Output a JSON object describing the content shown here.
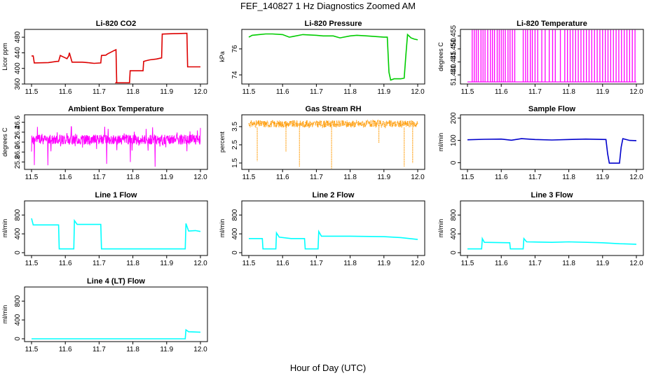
{
  "figure": {
    "title": "FEF_140827  1 Hz Diagnostics Zoomed AM",
    "xlabel": "Hour of Day (UTC)"
  },
  "chart_data": [
    {
      "type": "line",
      "title": "Li-820 CO2",
      "ylabel": "Licor ppm",
      "color": "#dd0000",
      "xlim": [
        11.5,
        12.0
      ],
      "ylim": [
        360,
        500
      ],
      "xticks": [
        "11.5",
        "11.6",
        "11.7",
        "11.8",
        "11.9",
        "12.0"
      ],
      "yticks": [
        "360",
        "400",
        "440",
        "480"
      ],
      "series": [
        {
          "points": [
            [
              11.5,
              432
            ],
            [
              11.505,
              432
            ],
            [
              11.508,
              414
            ],
            [
              11.55,
              415
            ],
            [
              11.575,
              418
            ],
            [
              11.58,
              418
            ],
            [
              11.585,
              433
            ],
            [
              11.6,
              427
            ],
            [
              11.605,
              425
            ],
            [
              11.61,
              432
            ],
            [
              11.612,
              440
            ],
            [
              11.62,
              416
            ],
            [
              11.65,
              416
            ],
            [
              11.665,
              415
            ],
            [
              11.675,
              414
            ],
            [
              11.685,
              413
            ],
            [
              11.705,
              414
            ],
            [
              11.707,
              433
            ],
            [
              11.72,
              434
            ],
            [
              11.725,
              437
            ],
            [
              11.745,
              446
            ],
            [
              11.75,
              448
            ],
            [
              11.752,
              365
            ],
            [
              11.75,
              363
            ],
            [
              11.79,
              363
            ],
            [
              11.792,
              394
            ],
            [
              11.83,
              394
            ],
            [
              11.832,
              418
            ],
            [
              11.84,
              420
            ],
            [
              11.85,
              422
            ],
            [
              11.87,
              424
            ],
            [
              11.885,
              427
            ],
            [
              11.887,
              488
            ],
            [
              11.92,
              489
            ],
            [
              11.96,
              490
            ],
            [
              11.962,
              404
            ],
            [
              12.0,
              404
            ]
          ]
        }
      ]
    },
    {
      "type": "line",
      "title": "Li-820 Pressure",
      "ylabel": "kPa",
      "color": "#00cc00",
      "xlim": [
        11.5,
        12.0
      ],
      "ylim": [
        73.3,
        77.5
      ],
      "xticks": [
        "11.5",
        "11.6",
        "11.7",
        "11.8",
        "11.9",
        "12.0"
      ],
      "yticks": [
        "74",
        "76"
      ],
      "series": [
        {
          "points": [
            [
              11.5,
              76.9
            ],
            [
              11.51,
              77.05
            ],
            [
              11.53,
              77.1
            ],
            [
              11.55,
              77.15
            ],
            [
              11.57,
              77.15
            ],
            [
              11.6,
              77.1
            ],
            [
              11.62,
              76.9
            ],
            [
              11.63,
              76.95
            ],
            [
              11.66,
              77.1
            ],
            [
              11.7,
              77.05
            ],
            [
              11.72,
              77.0
            ],
            [
              11.75,
              77.0
            ],
            [
              11.77,
              76.85
            ],
            [
              11.8,
              77.0
            ],
            [
              11.82,
              77.05
            ],
            [
              11.85,
              77.0
            ],
            [
              11.9,
              76.9
            ],
            [
              11.91,
              76.9
            ],
            [
              11.915,
              74.2
            ],
            [
              11.92,
              73.6
            ],
            [
              11.93,
              73.7
            ],
            [
              11.95,
              73.7
            ],
            [
              11.96,
              73.75
            ],
            [
              11.965,
              75.5
            ],
            [
              11.97,
              77.1
            ],
            [
              11.98,
              76.85
            ],
            [
              11.99,
              76.75
            ],
            [
              12.0,
              76.7
            ]
          ]
        }
      ]
    },
    {
      "type": "line",
      "title": "Li-820 Temperature",
      "ylabel": "degrees C",
      "color": "#ff00ff",
      "xlim": [
        11.5,
        12.0
      ],
      "ylim": [
        51.4365,
        51.4575
      ],
      "xticks": [
        "11.5",
        "11.6",
        "11.7",
        "11.8",
        "11.9",
        "12.0"
      ],
      "yticks": [
        "51.440",
        "51.445",
        "51.450",
        "51.455"
      ],
      "baseline": 51.4373,
      "peak": 51.4573,
      "spike_hours": [
        11.514,
        11.52,
        11.526,
        11.532,
        11.54,
        11.546,
        11.552,
        11.56,
        11.568,
        11.574,
        11.58,
        11.588,
        11.594,
        11.6,
        11.606,
        11.612,
        11.62,
        11.626,
        11.633,
        11.64,
        11.665,
        11.672,
        11.678,
        11.686,
        11.692,
        11.7,
        11.708,
        11.72,
        11.73,
        11.742,
        11.752,
        11.76,
        11.775,
        11.788,
        11.796,
        11.804,
        11.812,
        11.82,
        11.828,
        11.836,
        11.844,
        11.852,
        11.86,
        11.868,
        11.876,
        11.884,
        11.892,
        11.9,
        11.908,
        11.916,
        11.924,
        11.932,
        11.94,
        11.948,
        11.956,
        11.964,
        11.972,
        11.98,
        11.988,
        11.996
      ]
    },
    {
      "type": "line",
      "title": "Ambient Box Temperature",
      "ylabel": "degrees C",
      "color": "#ff00ff",
      "xlim": [
        11.5,
        12.0
      ],
      "ylim": [
        25.65,
        26.75
      ],
      "xticks": [
        "11.5",
        "11.6",
        "11.7",
        "11.8",
        "11.9",
        "12.0"
      ],
      "yticks": [
        "25.8",
        "26.0",
        "26.2",
        "26.4",
        "26.6"
      ],
      "band": {
        "center": 26.25,
        "half_width": 0.1,
        "noise_max": 0.28,
        "floor": 25.7
      }
    },
    {
      "type": "line",
      "title": "Gas Stream RH",
      "ylabel": "percent",
      "color": "#ff9900",
      "xlim": [
        11.5,
        12.0
      ],
      "ylim": [
        1.15,
        4.15
      ],
      "xticks": [
        "11.5",
        "11.6",
        "11.7",
        "11.8",
        "11.9",
        "12.0"
      ],
      "yticks": [
        "1.5",
        "2.5",
        "3.5"
      ],
      "band": {
        "low": 3.45,
        "high": 3.85
      },
      "dips": [
        [
          11.525,
          1.6
        ],
        [
          11.61,
          2.1
        ],
        [
          11.65,
          1.3
        ],
        [
          11.745,
          1.2
        ],
        [
          11.885,
          2.6
        ],
        [
          11.96,
          1.3
        ],
        [
          11.985,
          1.5
        ]
      ]
    },
    {
      "type": "line",
      "title": "Sample Flow",
      "ylabel": "ml/min",
      "color": "#0000cc",
      "xlim": [
        11.5,
        12.0
      ],
      "ylim": [
        -30,
        215
      ],
      "xticks": [
        "11.5",
        "11.6",
        "11.7",
        "11.8",
        "11.9",
        "12.0"
      ],
      "yticks": [
        "0",
        "100",
        "200"
      ],
      "series": [
        {
          "points": [
            [
              11.5,
              103
            ],
            [
              11.55,
              105
            ],
            [
              11.6,
              106
            ],
            [
              11.63,
              101
            ],
            [
              11.66,
              108
            ],
            [
              11.7,
              104
            ],
            [
              11.75,
              102
            ],
            [
              11.8,
              104
            ],
            [
              11.85,
              106
            ],
            [
              11.91,
              104
            ],
            [
              11.915,
              40
            ],
            [
              11.92,
              -2
            ],
            [
              11.95,
              -2
            ],
            [
              11.955,
              70
            ],
            [
              11.96,
              108
            ],
            [
              11.98,
              100
            ],
            [
              12.0,
              99
            ]
          ]
        }
      ]
    },
    {
      "type": "line",
      "title": "Line 1 Flow",
      "ylabel": "ml/min",
      "color": "#00ffff",
      "xlim": [
        11.5,
        12.0
      ],
      "ylim": [
        -60,
        1100
      ],
      "xticks": [
        "11.5",
        "11.6",
        "11.7",
        "11.8",
        "11.9",
        "12.0"
      ],
      "yticks": [
        "0",
        "400",
        "800"
      ],
      "series": [
        {
          "points": [
            [
              11.5,
              730
            ],
            [
              11.505,
              590
            ],
            [
              11.58,
              590
            ],
            [
              11.582,
              80
            ],
            [
              11.625,
              80
            ],
            [
              11.627,
              680
            ],
            [
              11.635,
              600
            ],
            [
              11.705,
              600
            ],
            [
              11.707,
              80
            ],
            [
              11.955,
              80
            ],
            [
              11.957,
              620
            ],
            [
              11.965,
              460
            ],
            [
              11.985,
              470
            ],
            [
              12.0,
              450
            ]
          ]
        }
      ]
    },
    {
      "type": "line",
      "title": "Line 2 Flow",
      "ylabel": "ml/min",
      "color": "#00ffff",
      "xlim": [
        11.5,
        12.0
      ],
      "ylim": [
        -60,
        1100
      ],
      "xticks": [
        "11.5",
        "11.6",
        "11.7",
        "11.8",
        "11.9",
        "12.0"
      ],
      "yticks": [
        "0",
        "400",
        "800"
      ],
      "series": [
        {
          "points": [
            [
              11.5,
              300
            ],
            [
              11.54,
              300
            ],
            [
              11.542,
              80
            ],
            [
              11.58,
              80
            ],
            [
              11.582,
              420
            ],
            [
              11.59,
              330
            ],
            [
              11.625,
              300
            ],
            [
              11.665,
              300
            ],
            [
              11.667,
              80
            ],
            [
              11.705,
              80
            ],
            [
              11.707,
              450
            ],
            [
              11.715,
              350
            ],
            [
              11.8,
              350
            ],
            [
              11.9,
              340
            ],
            [
              11.95,
              320
            ],
            [
              12.0,
              280
            ]
          ]
        }
      ]
    },
    {
      "type": "line",
      "title": "Line 3 Flow",
      "ylabel": "ml/min",
      "color": "#00ffff",
      "xlim": [
        11.5,
        12.0
      ],
      "ylim": [
        -60,
        1100
      ],
      "xticks": [
        "11.5",
        "11.6",
        "11.7",
        "11.8",
        "11.9",
        "12.0"
      ],
      "yticks": [
        "0",
        "400",
        "800"
      ],
      "series": [
        {
          "points": [
            [
              11.5,
              80
            ],
            [
              11.542,
              80
            ],
            [
              11.544,
              300
            ],
            [
              11.55,
              220
            ],
            [
              11.625,
              210
            ],
            [
              11.627,
              80
            ],
            [
              11.665,
              80
            ],
            [
              11.667,
              300
            ],
            [
              11.675,
              230
            ],
            [
              11.75,
              220
            ],
            [
              11.8,
              230
            ],
            [
              11.9,
              210
            ],
            [
              11.95,
              190
            ],
            [
              12.0,
              180
            ]
          ]
        }
      ]
    },
    {
      "type": "line",
      "title": "Line 4 (LT) Flow",
      "ylabel": "ml/min",
      "color": "#00ffff",
      "xlim": [
        11.5,
        12.0
      ],
      "ylim": [
        -60,
        1100
      ],
      "xticks": [
        "11.5",
        "11.6",
        "11.7",
        "11.8",
        "11.9",
        "12.0"
      ],
      "yticks": [
        "0",
        "400",
        "800"
      ],
      "series": [
        {
          "points": [
            [
              11.5,
              0
            ],
            [
              11.955,
              0
            ],
            [
              11.957,
              190
            ],
            [
              11.965,
              150
            ],
            [
              12.0,
              140
            ]
          ]
        }
      ]
    }
  ]
}
